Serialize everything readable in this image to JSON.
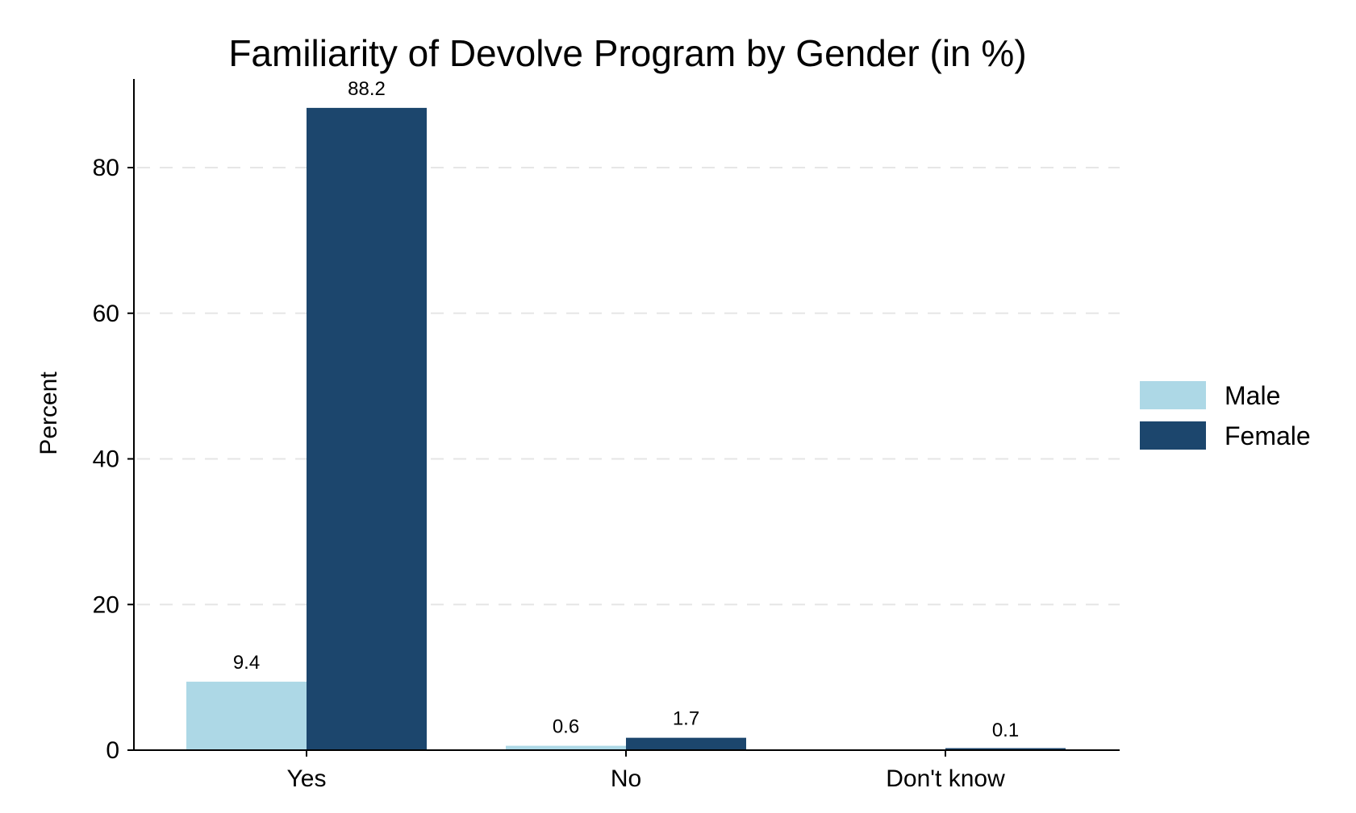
{
  "chart_data": {
    "type": "bar",
    "title": "Familiarity of Devolve Program by Gender (in %)",
    "xlabel": "",
    "ylabel": "Percent",
    "categories": [
      "Yes",
      "No",
      "Don't know"
    ],
    "series": [
      {
        "name": "Male",
        "color": "#add8e6",
        "values": [
          9.4,
          0.6,
          0.0
        ]
      },
      {
        "name": "Female",
        "color": "#1c466d",
        "values": [
          88.2,
          1.7,
          0.1
        ]
      }
    ],
    "data_labels": [
      [
        "9.4",
        "0.6",
        ""
      ],
      [
        "88.2",
        "1.7",
        "0.1"
      ]
    ],
    "ylim": [
      0,
      92
    ],
    "yticks": [
      0,
      20,
      40,
      60,
      80
    ],
    "ytick_labels": [
      "0",
      "20",
      "40",
      "60",
      "80"
    ],
    "grid": true,
    "legend_position": "right"
  }
}
